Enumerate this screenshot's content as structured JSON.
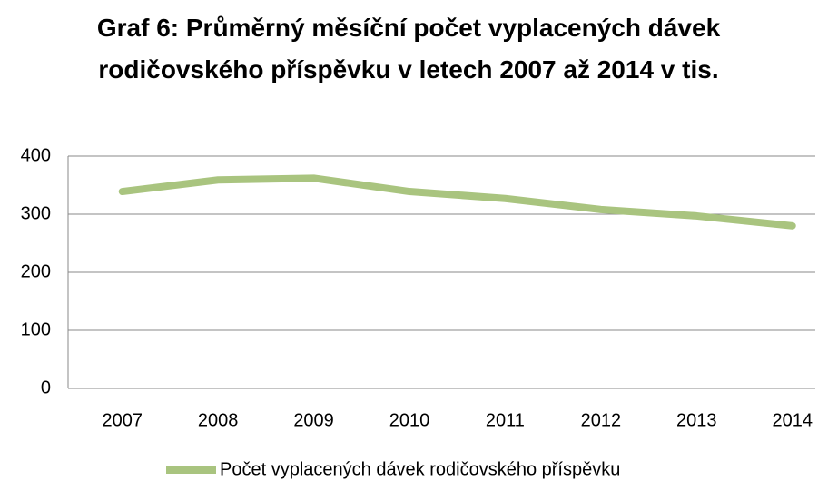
{
  "chart_data": {
    "type": "line",
    "title": "Graf 6: Průměrný měsíční počet vyplacených dávek rodičovského příspěvku v letech 2007 až 2014 v tis.",
    "categories": [
      "2007",
      "2008",
      "2009",
      "2010",
      "2011",
      "2012",
      "2013",
      "2014"
    ],
    "series": [
      {
        "name": "Počet vyplacených dávek rodičovského příspěvku",
        "color": "#a9c47f",
        "values": [
          339,
          359,
          362,
          339,
          327,
          308,
          297,
          280
        ]
      }
    ],
    "ylim": [
      0,
      400
    ],
    "yticks": [
      0,
      100,
      200,
      300,
      400
    ],
    "grid": true,
    "legend": "bottom"
  }
}
